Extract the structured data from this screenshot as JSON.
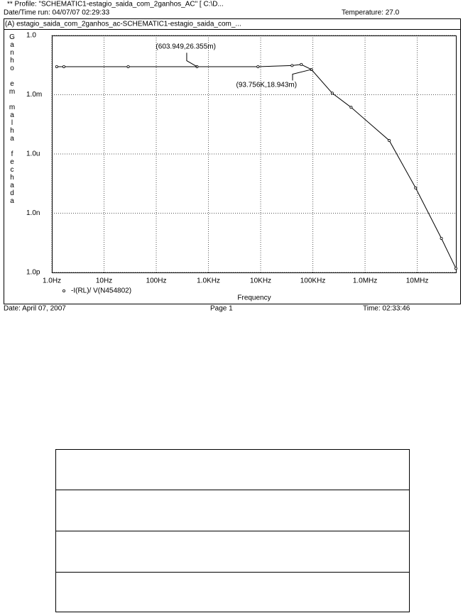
{
  "header": {
    "profile": "** Profile: \"SCHEMATIC1-estagio_saida_com_2ganhos_AC\"  [ C:\\D...",
    "run": "Date/Time run: 04/07/07 02:29:33",
    "temperature": "Temperature: 27.0"
  },
  "footer": {
    "date": "Date: April 07, 2007",
    "page": "Page 1",
    "time": "Time: 02:33:46"
  },
  "chart_data": {
    "type": "line",
    "title": "(A) estagio_saida_com_2ganhos_ac-SCHEMATIC1-estagio_saida_com_...",
    "x_label": "Frequency",
    "y_label": "Ganho em malha fechada",
    "x_log": true,
    "y_log": true,
    "grid": true,
    "xlim": [
      1,
      55000000
    ],
    "ylim": [
      1e-12,
      1
    ],
    "xticks": [
      {
        "value": 1,
        "label": "1.0Hz"
      },
      {
        "value": 10,
        "label": "10Hz"
      },
      {
        "value": 100,
        "label": "100Hz"
      },
      {
        "value": 1000,
        "label": "1.0KHz"
      },
      {
        "value": 10000,
        "label": "10KHz"
      },
      {
        "value": 100000,
        "label": "100KHz"
      },
      {
        "value": 1000000,
        "label": "1.0MHz"
      },
      {
        "value": 10000000,
        "label": "10MHz"
      }
    ],
    "yticks": [
      {
        "value": 1,
        "label": "1.0"
      },
      {
        "value": 0.001,
        "label": "1.0m"
      },
      {
        "value": 1e-06,
        "label": "1.0u"
      },
      {
        "value": 1e-09,
        "label": "1.0n"
      },
      {
        "value": 1e-12,
        "label": "1.0p"
      }
    ],
    "x": [
      1.24,
      1.7,
      29,
      603.949,
      8900,
      40000,
      60000,
      93756,
      235000,
      540000,
      2900000,
      9300000,
      29000000,
      55000000
    ],
    "series": [
      {
        "name": "-I(RL)/ V(N454802)",
        "color": "#000000",
        "values": [
          0.026355,
          0.026355,
          0.026355,
          0.026355,
          0.026355,
          0.03,
          0.034,
          0.018943,
          0.0012,
          0.00023,
          4.8e-06,
          1.9e-08,
          5.3e-11,
          1.6e-12
        ]
      }
    ],
    "annotations": [
      {
        "text": "(603.949,26.355m)",
        "x": 603.949,
        "y": 0.026355
      },
      {
        "text": "(93.756K,18.943m)",
        "x": 93756,
        "y": 0.018943
      }
    ]
  }
}
